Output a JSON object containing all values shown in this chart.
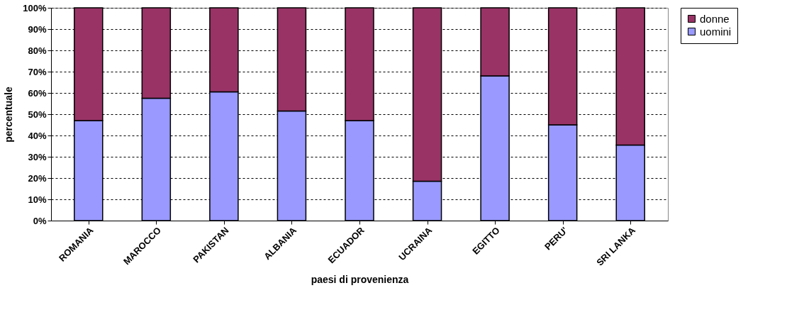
{
  "chart_data": {
    "type": "bar",
    "stacked": true,
    "xlabel": "paesi di provenienza",
    "ylabel": "percentuale",
    "categories": [
      "ROMANIA",
      "MAROCCO",
      "PAKISTAN",
      "ALBANIA",
      "ECUADOR",
      "UCRAINA",
      "EGITTO",
      "PERU'",
      "SRI LANKA"
    ],
    "series": [
      {
        "name": "uomini",
        "color": "#9999ff",
        "values": [
          47,
          57.5,
          60.5,
          51.5,
          47,
          18.5,
          68,
          45,
          35.5
        ]
      },
      {
        "name": "donne",
        "color": "#993366",
        "values": [
          53,
          42.5,
          39.5,
          48.5,
          53,
          81.5,
          32,
          55,
          64.5
        ]
      }
    ],
    "ylim": [
      0,
      100
    ],
    "yticks": [
      {
        "value": 0,
        "label": "0%"
      },
      {
        "value": 10,
        "label": "10%"
      },
      {
        "value": 20,
        "label": "20%"
      },
      {
        "value": 30,
        "label": "30%"
      },
      {
        "value": 40,
        "label": "40%"
      },
      {
        "value": 50,
        "label": "50%"
      },
      {
        "value": 60,
        "label": "60%"
      },
      {
        "value": 70,
        "label": "70%"
      },
      {
        "value": 80,
        "label": "80%"
      },
      {
        "value": 90,
        "label": "90%"
      },
      {
        "value": 100,
        "label": "100%"
      }
    ],
    "grid": "y",
    "legend": "right"
  }
}
